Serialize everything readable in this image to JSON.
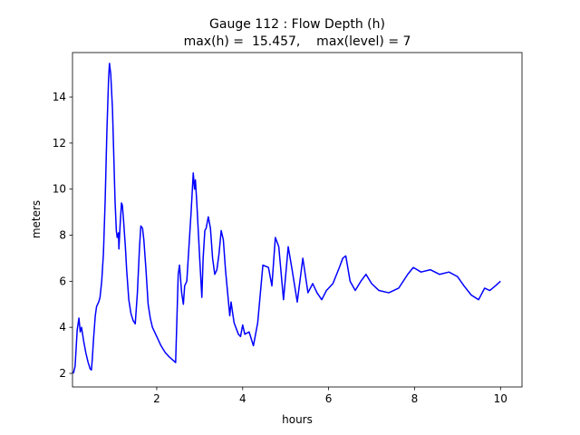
{
  "chart_data": {
    "type": "line",
    "title": "Gauge 112 : Flow Depth (h)",
    "subtitle": "max(h) =  15.457,    max(level) = 7",
    "x_label": "hours",
    "y_label": "meters",
    "xlim": [
      0.04,
      10.5
    ],
    "ylim": [
      1.41,
      15.93
    ],
    "xticks": [
      2,
      4,
      6,
      8,
      10
    ],
    "yticks": [
      2,
      4,
      6,
      8,
      10,
      12,
      14
    ],
    "grid": false,
    "series": [
      {
        "name": "h",
        "color": "#0000ff",
        "x": [
          0.06,
          0.1,
          0.15,
          0.19,
          0.22,
          0.25,
          0.3,
          0.35,
          0.4,
          0.45,
          0.48,
          0.5,
          0.53,
          0.57,
          0.6,
          0.65,
          0.68,
          0.72,
          0.76,
          0.8,
          0.84,
          0.88,
          0.9,
          0.93,
          0.97,
          1.0,
          1.03,
          1.06,
          1.08,
          1.11,
          1.12,
          1.15,
          1.18,
          1.2,
          1.23,
          1.27,
          1.3,
          1.35,
          1.4,
          1.45,
          1.5,
          1.55,
          1.6,
          1.63,
          1.67,
          1.7,
          1.75,
          1.8,
          1.85,
          1.9,
          2.0,
          2.1,
          2.2,
          2.3,
          2.44,
          2.5,
          2.53,
          2.58,
          2.62,
          2.65,
          2.7,
          2.75,
          2.8,
          2.85,
          2.88,
          2.9,
          2.93,
          3.0,
          3.05,
          3.08,
          3.12,
          3.15,
          3.2,
          3.25,
          3.3,
          3.35,
          3.4,
          3.45,
          3.5,
          3.55,
          3.6,
          3.65,
          3.7,
          3.73,
          3.8,
          3.9,
          3.95,
          4.0,
          4.05,
          4.15,
          4.25,
          4.35,
          4.47,
          4.6,
          4.68,
          4.76,
          4.84,
          4.95,
          5.06,
          5.15,
          5.27,
          5.4,
          5.52,
          5.63,
          5.73,
          5.84,
          5.95,
          6.1,
          6.25,
          6.33,
          6.4,
          6.5,
          6.62,
          6.75,
          6.87,
          7.0,
          7.17,
          7.4,
          7.63,
          7.84,
          7.97,
          8.15,
          8.37,
          8.58,
          8.8,
          9.0,
          9.15,
          9.32,
          9.49,
          9.63,
          9.75,
          9.88,
          10.0
        ],
        "values": [
          2.0,
          2.3,
          3.9,
          4.4,
          3.8,
          4.0,
          3.4,
          2.9,
          2.5,
          2.2,
          2.15,
          2.6,
          3.5,
          4.5,
          4.9,
          5.1,
          5.3,
          6.0,
          7.2,
          9.5,
          12.5,
          14.8,
          15.457,
          15.0,
          13.5,
          11.5,
          9.5,
          8.2,
          7.9,
          8.1,
          7.4,
          8.5,
          9.4,
          9.3,
          8.6,
          7.5,
          6.5,
          5.2,
          4.6,
          4.3,
          4.15,
          5.5,
          7.5,
          8.4,
          8.3,
          7.8,
          6.5,
          5.0,
          4.4,
          4.0,
          3.6,
          3.2,
          2.9,
          2.7,
          2.47,
          6.3,
          6.7,
          5.5,
          5.0,
          5.8,
          6.0,
          7.5,
          9.0,
          10.7,
          10.0,
          10.4,
          9.5,
          7.0,
          5.3,
          7.0,
          8.2,
          8.3,
          8.8,
          8.3,
          7.0,
          6.3,
          6.5,
          7.2,
          8.2,
          7.8,
          6.5,
          5.5,
          4.5,
          5.1,
          4.2,
          3.7,
          3.6,
          4.1,
          3.7,
          3.8,
          3.2,
          4.2,
          6.7,
          6.6,
          5.8,
          7.9,
          7.5,
          5.2,
          7.5,
          6.5,
          5.1,
          7.0,
          5.5,
          5.9,
          5.5,
          5.2,
          5.6,
          5.9,
          6.6,
          7.0,
          7.1,
          6.0,
          5.6,
          6.0,
          6.3,
          5.9,
          5.6,
          5.5,
          5.7,
          6.3,
          6.6,
          6.4,
          6.5,
          6.3,
          6.4,
          6.2,
          5.8,
          5.4,
          5.2,
          5.7,
          5.6,
          5.8,
          6.0
        ]
      }
    ]
  }
}
